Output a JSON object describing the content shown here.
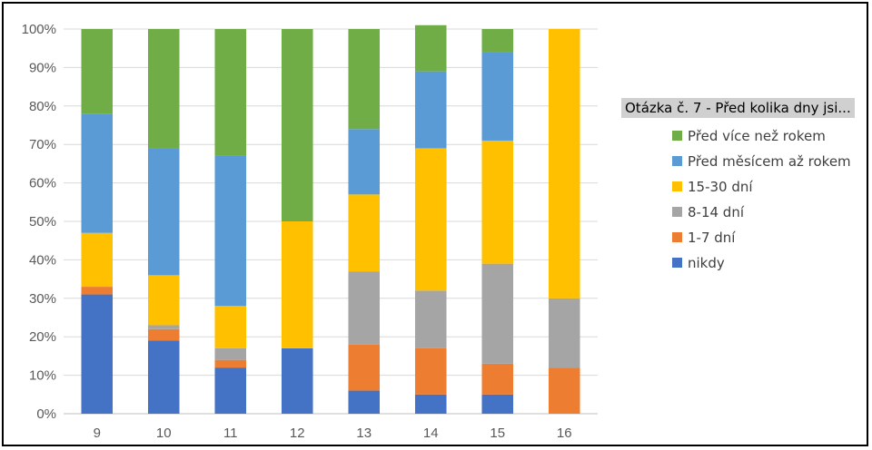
{
  "chart_data": {
    "type": "bar",
    "stacked": "percent",
    "title": "",
    "xlabel": "",
    "ylabel": "",
    "ylim": [
      0,
      100
    ],
    "yticks": [
      "0%",
      "10%",
      "20%",
      "30%",
      "40%",
      "50%",
      "60%",
      "70%",
      "80%",
      "90%",
      "100%"
    ],
    "categories": [
      "9",
      "10",
      "11",
      "12",
      "13",
      "14",
      "15",
      "16"
    ],
    "legend": {
      "title": "Otázka č. 7 - Před kolika dny jsi...",
      "position": "right"
    },
    "series": [
      {
        "name": "nikdy",
        "color": "#4472C4",
        "values": [
          31,
          19,
          12,
          17,
          6,
          5,
          5,
          0
        ]
      },
      {
        "name": "1-7 dní",
        "color": "#ED7D31",
        "values": [
          2,
          3,
          2,
          0,
          12,
          12,
          8,
          12
        ]
      },
      {
        "name": "8-14 dní",
        "color": "#A5A5A5",
        "values": [
          0,
          1,
          3,
          0,
          19,
          15,
          26,
          18
        ]
      },
      {
        "name": "15-30 dní",
        "color": "#FFC000",
        "values": [
          14,
          13,
          11,
          33,
          20,
          37,
          32,
          70
        ]
      },
      {
        "name": "Před měsícem až rokem",
        "color": "#5B9BD5",
        "values": [
          31,
          33,
          39,
          0,
          17,
          20,
          23,
          0
        ]
      },
      {
        "name": "Před více než rokem",
        "color": "#70AD47",
        "values": [
          22,
          31,
          33,
          50,
          26,
          12,
          6,
          0
        ]
      }
    ]
  }
}
